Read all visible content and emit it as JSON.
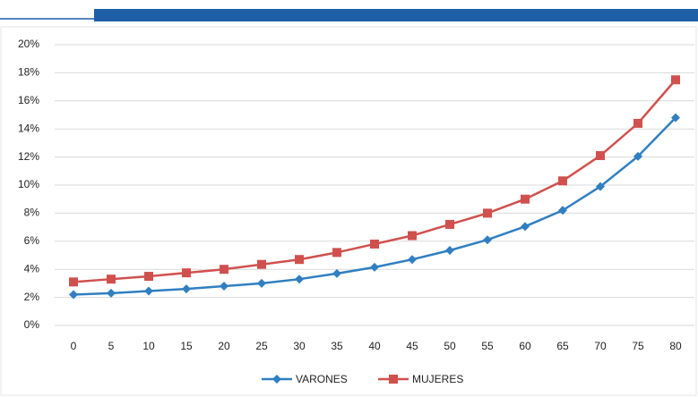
{
  "chart_data": {
    "type": "line",
    "categories": [
      "0",
      "5",
      "10",
      "15",
      "20",
      "25",
      "30",
      "35",
      "40",
      "45",
      "50",
      "55",
      "60",
      "65",
      "70",
      "75",
      "80"
    ],
    "series": [
      {
        "name": "VARONES",
        "color": "#2f7fc1",
        "marker": "diamond",
        "values": [
          2.2,
          2.3,
          2.45,
          2.6,
          2.8,
          3.0,
          3.3,
          3.7,
          4.15,
          4.7,
          5.35,
          6.1,
          7.05,
          8.2,
          9.9,
          12.05,
          14.8
        ]
      },
      {
        "name": "MUJERES",
        "color": "#d0504d",
        "marker": "square",
        "values": [
          3.1,
          3.3,
          3.5,
          3.75,
          4.0,
          4.35,
          4.7,
          5.2,
          5.8,
          6.4,
          7.2,
          8.0,
          9.0,
          10.3,
          12.1,
          14.4,
          17.5
        ]
      }
    ],
    "ylim": [
      0,
      20
    ],
    "yticks": [
      {
        "value": 0,
        "label": "0%"
      },
      {
        "value": 2,
        "label": "2%"
      },
      {
        "value": 4,
        "label": "4%"
      },
      {
        "value": 6,
        "label": "6%"
      },
      {
        "value": 8,
        "label": "8%"
      },
      {
        "value": 10,
        "label": "10%"
      },
      {
        "value": 12,
        "label": "12%"
      },
      {
        "value": 14,
        "label": "14%"
      },
      {
        "value": 16,
        "label": "16%"
      },
      {
        "value": 18,
        "label": "18%"
      },
      {
        "value": 20,
        "label": "20%"
      }
    ],
    "grid": true,
    "legend": "bottom"
  }
}
